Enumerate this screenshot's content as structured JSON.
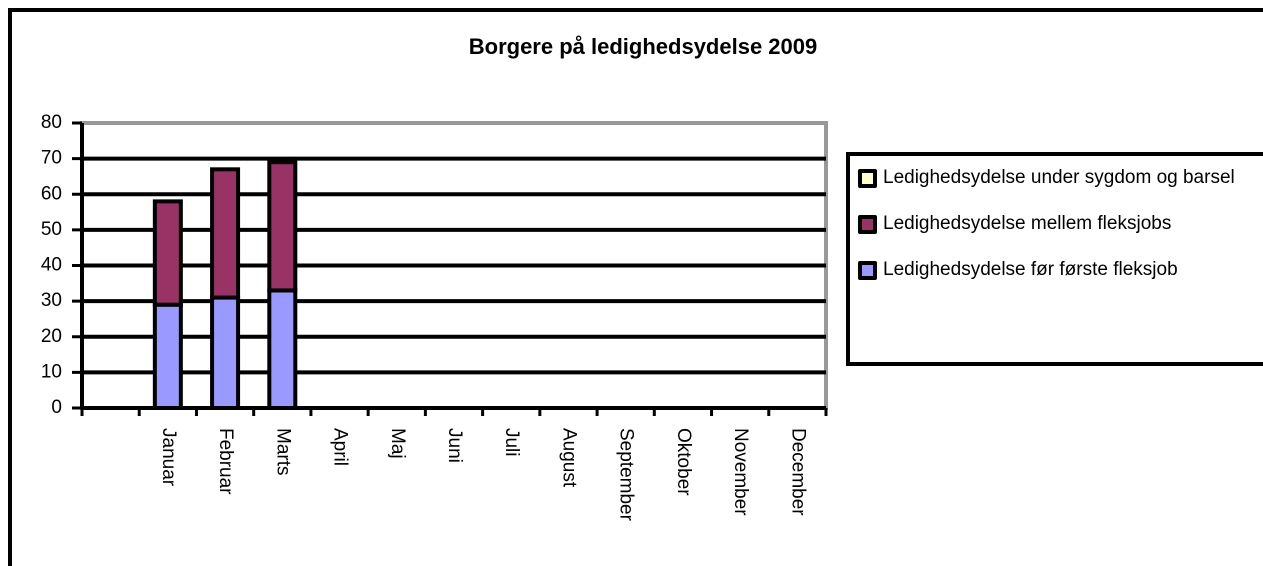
{
  "chart_data": {
    "type": "stacked-bar",
    "title": "Borgere på ledighedsydelse 2009",
    "categories": [
      null,
      "Januar",
      "Februar",
      "Marts",
      "April",
      "Maj",
      "Juni",
      "Juli",
      "August",
      "September",
      "Oktober",
      "November",
      "December"
    ],
    "series": [
      {
        "name": "Ledighedsydelse under sygdom og barsel",
        "color": "#ffffcc",
        "values": [
          null,
          0,
          0,
          0,
          null,
          null,
          null,
          null,
          null,
          null,
          null,
          null,
          null
        ]
      },
      {
        "name": "Ledighedsydelse mellem fleksjobs",
        "color": "#993366",
        "values": [
          null,
          29,
          36,
          36,
          null,
          null,
          null,
          null,
          null,
          null,
          null,
          null,
          null
        ]
      },
      {
        "name": "Ledighedsydelse før første fleksjob",
        "color": "#9999ff",
        "values": [
          null,
          29,
          31,
          33,
          null,
          null,
          null,
          null,
          null,
          null,
          null,
          null,
          null
        ]
      }
    ],
    "ylim": [
      0,
      80
    ],
    "yticks": [
      0,
      10,
      20,
      30,
      40,
      50,
      60,
      70,
      80
    ],
    "grid": true,
    "legend": "right"
  }
}
